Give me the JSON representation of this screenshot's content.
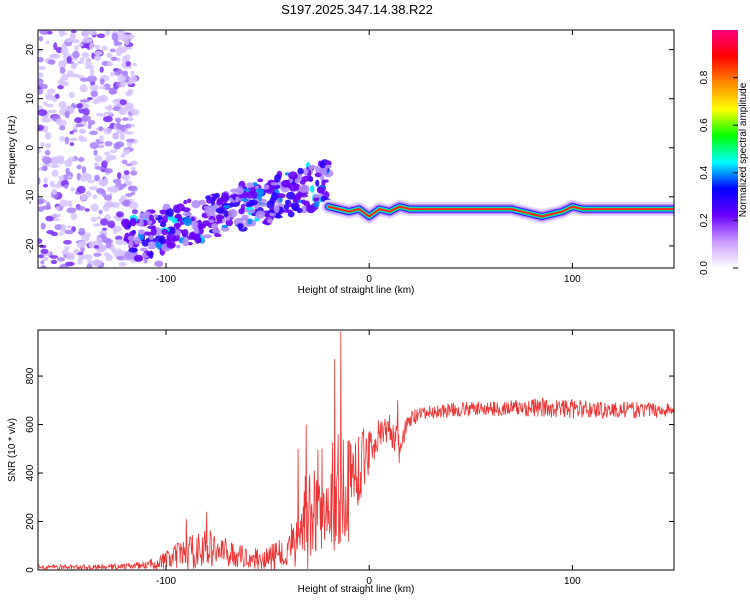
{
  "title": "S197.2025.347.14.38.R22",
  "chart_data": [
    {
      "type": "heatmap",
      "title": "S197.2025.347.14.38.R22",
      "xlabel": "Height of straight line (km)",
      "ylabel": "Frequency (Hz)",
      "xlim": [
        -163,
        150
      ],
      "ylim": [
        -24.5,
        24
      ],
      "xticks": [
        -100,
        0,
        100
      ],
      "xtick_labels": [
        "-100",
        "0",
        "100"
      ],
      "yticks": [
        -20,
        -10,
        0,
        10,
        20
      ],
      "ytick_labels": [
        "-20",
        "-10",
        "0",
        "10",
        "20"
      ],
      "ridge": {
        "x": [
          -20,
          -10,
          -5,
          0,
          5,
          10,
          15,
          20,
          60,
          70,
          75,
          80,
          85,
          90,
          95,
          100,
          105,
          150
        ],
        "y": [
          -12,
          -13,
          -12.5,
          -14,
          -12.5,
          -13,
          -12,
          -12.5,
          -12.5,
          -12.5,
          -13,
          -13.5,
          -14,
          -13.5,
          -13,
          -12,
          -12.5,
          -12.5
        ]
      },
      "colorbar": {
        "label": "Normalized spectral amplitude",
        "range": [
          0,
          1
        ],
        "ticks": [
          0.0,
          0.2,
          0.4,
          0.6,
          0.8
        ],
        "tick_labels": [
          "0.0",
          "0.2",
          "0.4",
          "0.6",
          "0.8"
        ],
        "colormap": [
          "#ffffff",
          "#cc99ff",
          "#6600ff",
          "#0000ff",
          "#00ffff",
          "#00ff00",
          "#ffff00",
          "#ff8800",
          "#ff0000",
          "#ff0080"
        ]
      }
    },
    {
      "type": "line",
      "xlabel": "Height of straight line (km)",
      "ylabel": "SNR (10 * v/v)",
      "xlim": [
        -163,
        150
      ],
      "ylim": [
        0,
        990
      ],
      "xticks": [
        -100,
        0,
        100
      ],
      "xtick_labels": [
        "-100",
        "0",
        "100"
      ],
      "yticks": [
        0,
        200,
        400,
        600,
        800
      ],
      "ytick_labels": [
        "0",
        "200",
        "400",
        "600",
        "800"
      ],
      "line_color": "#ee3333",
      "envelope": {
        "x": [
          -163,
          -130,
          -110,
          -100,
          -90,
          -80,
          -70,
          -60,
          -50,
          -40,
          -35,
          -30,
          -25,
          -20,
          -15,
          -10,
          -5,
          0,
          5,
          10,
          15,
          20,
          25,
          30,
          40,
          50,
          60,
          80,
          100,
          120,
          150
        ],
        "base": [
          12,
          12,
          20,
          40,
          70,
          90,
          70,
          50,
          45,
          80,
          150,
          250,
          250,
          300,
          350,
          380,
          420,
          500,
          560,
          580,
          500,
          620,
          640,
          650,
          660,
          665,
          665,
          670,
          665,
          660,
          660
        ],
        "amp": [
          10,
          10,
          15,
          40,
          70,
          80,
          60,
          40,
          50,
          80,
          150,
          250,
          250,
          250,
          250,
          200,
          150,
          100,
          60,
          50,
          80,
          40,
          30,
          30,
          30,
          30,
          30,
          40,
          40,
          35,
          30
        ]
      },
      "spikes": [
        {
          "x": -14,
          "y": 985
        },
        {
          "x": -17,
          "y": 870
        },
        {
          "x": -31,
          "y": 600
        },
        {
          "x": -35,
          "y": 500
        },
        {
          "x": -80,
          "y": 240
        },
        {
          "x": -90,
          "y": 210
        },
        {
          "x": 14,
          "y": 700
        },
        {
          "x": 10,
          "y": 640
        }
      ]
    }
  ]
}
